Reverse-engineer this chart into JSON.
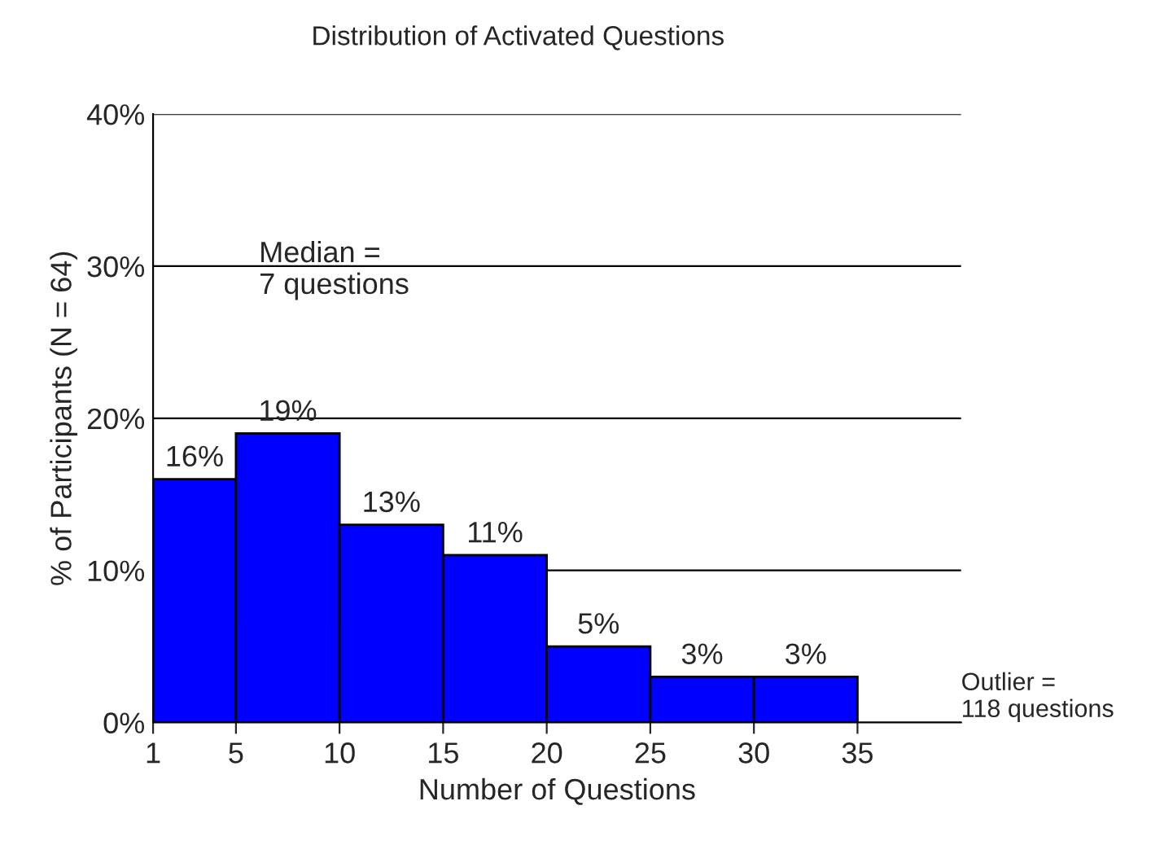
{
  "chart_data": {
    "type": "histogram",
    "title": "Distribution of Activated Questions",
    "xlabel": "Number of Questions",
    "ylabel": "% of Participants (N = 64)",
    "bins": [
      1,
      5,
      10,
      15,
      20,
      25,
      30,
      35
    ],
    "values": [
      16,
      19,
      13,
      11,
      5,
      3,
      3
    ],
    "value_labels": [
      "16%",
      "19%",
      "13%",
      "11%",
      "5%",
      "3%",
      "3%"
    ],
    "color": "#0000ff",
    "xlim": [
      1,
      40
    ],
    "xticks": [
      1,
      5,
      10,
      15,
      20,
      25,
      30,
      35
    ],
    "ylim": [
      0,
      40
    ],
    "yticks": [
      {
        "value": 0,
        "label": "0%"
      },
      {
        "value": 10,
        "label": "10%"
      },
      {
        "value": 20,
        "label": "20%"
      },
      {
        "value": 30,
        "label": "30%"
      },
      {
        "value": 40,
        "label": "40%"
      }
    ],
    "grid": "y",
    "annotations": [
      "Median =\n7 questions",
      "Outlier =\n118 questions"
    ]
  }
}
